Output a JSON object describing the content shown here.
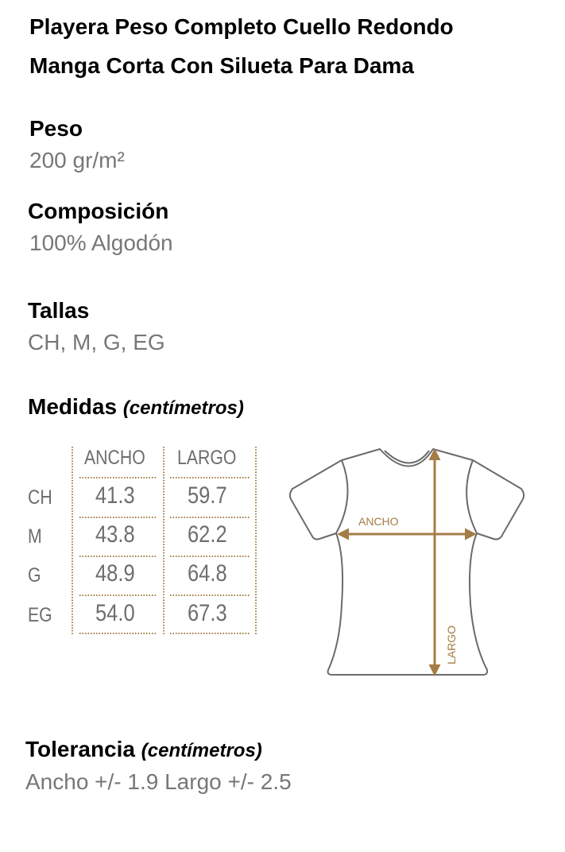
{
  "title_lines": [
    "Playera Peso Completo Cuello Redondo",
    "Manga Corta Con Silueta Para Dama"
  ],
  "peso": {
    "label": "Peso",
    "value": "200 gr/m²"
  },
  "composicion": {
    "label": "Composición",
    "value": "100% Algodón"
  },
  "tallas": {
    "label": "Tallas",
    "value": "CH, M, G, EG"
  },
  "medidas": {
    "label": "Medidas",
    "unit": "(centímetros)",
    "columns": [
      "ANCHO",
      "LARGO"
    ],
    "rows": [
      {
        "size": "CH",
        "ancho": "41.3",
        "largo": "59.7"
      },
      {
        "size": "M",
        "ancho": "43.8",
        "largo": "62.2"
      },
      {
        "size": "G",
        "ancho": "48.9",
        "largo": "64.8"
      },
      {
        "size": "EG",
        "ancho": "54.0",
        "largo": "67.3"
      }
    ]
  },
  "diagram": {
    "ancho_label": "ANCHO",
    "largo_label": "LARGO",
    "accent_color": "#a47c45",
    "outline_color": "#6b6b6b"
  },
  "tolerancia": {
    "label": "Tolerancia",
    "unit": "(centímetros)",
    "value": "Ancho +/- 1.9 Largo +/- 2.5"
  }
}
